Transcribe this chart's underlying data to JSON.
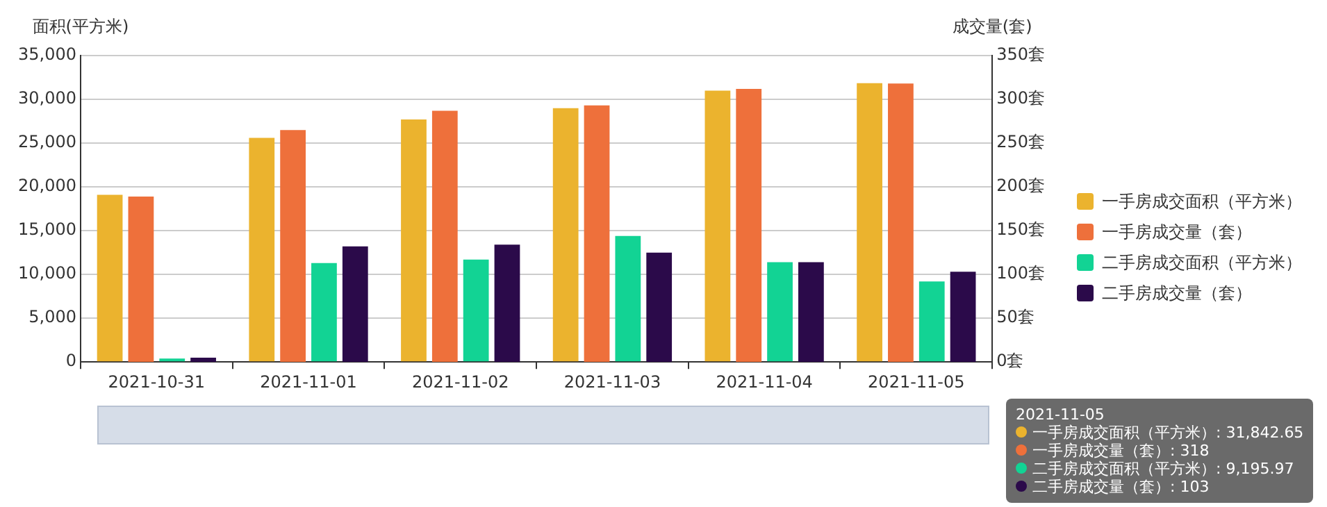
{
  "chart_data": {
    "type": "bar",
    "categories": [
      "2021-10-31",
      "2021-11-01",
      "2021-11-02",
      "2021-11-03",
      "2021-11-04",
      "2021-11-05"
    ],
    "ylabel": "面积(平方米)",
    "y2label": "成交量(套)",
    "ylim": [
      0,
      35000
    ],
    "yticks": [
      0,
      {
        "value": 5000,
        "label": "5,000"
      },
      {
        "value": 10000,
        "label": "10,000"
      },
      {
        "value": 15000,
        "label": "15,000"
      },
      {
        "value": 20000,
        "label": "20,000"
      },
      {
        "value": 25000,
        "label": "25,000"
      },
      {
        "value": 30000,
        "label": "30,000"
      },
      {
        "value": 35000,
        "label": "35,000"
      }
    ],
    "y2lim": [
      0,
      350
    ],
    "y2ticks": [
      {
        "value": 0,
        "label": "0套"
      },
      {
        "value": 50,
        "label": "50套"
      },
      {
        "value": 100,
        "label": "100套"
      },
      {
        "value": 150,
        "label": "150套"
      },
      {
        "value": 200,
        "label": "200套"
      },
      {
        "value": 250,
        "label": "250套"
      },
      {
        "value": 300,
        "label": "300套"
      },
      {
        "value": 350,
        "label": "350套"
      }
    ],
    "series": [
      {
        "name": "一手房成交面积（平方米）",
        "color": "#ebb32e",
        "values": [
          19100,
          25600,
          27700,
          29000,
          31000,
          31842.65
        ]
      },
      {
        "name": "一手房成交量（套）",
        "color": "#ee703b",
        "axis": "y2",
        "values": [
          189,
          265,
          287,
          293,
          312,
          318
        ]
      },
      {
        "name": "二手房成交面积（平方米）",
        "color": "#12d394",
        "values": [
          400,
          11300,
          11700,
          14400,
          11400,
          9195.97
        ]
      },
      {
        "name": "二手房成交量（套）",
        "color": "#2b0a4a",
        "axis": "y2",
        "values": [
          5,
          132,
          134,
          125,
          114,
          103
        ]
      }
    ],
    "annotations": [
      "2021-11-05",
      "一手房成交面积（平方米）: 31,842.65",
      "一手房成交量（套）: 318",
      "二手房成交面积（平方米）: 9,195.97",
      "二手房成交量（套）: 103"
    ],
    "grid": "y",
    "legend": "right"
  }
}
